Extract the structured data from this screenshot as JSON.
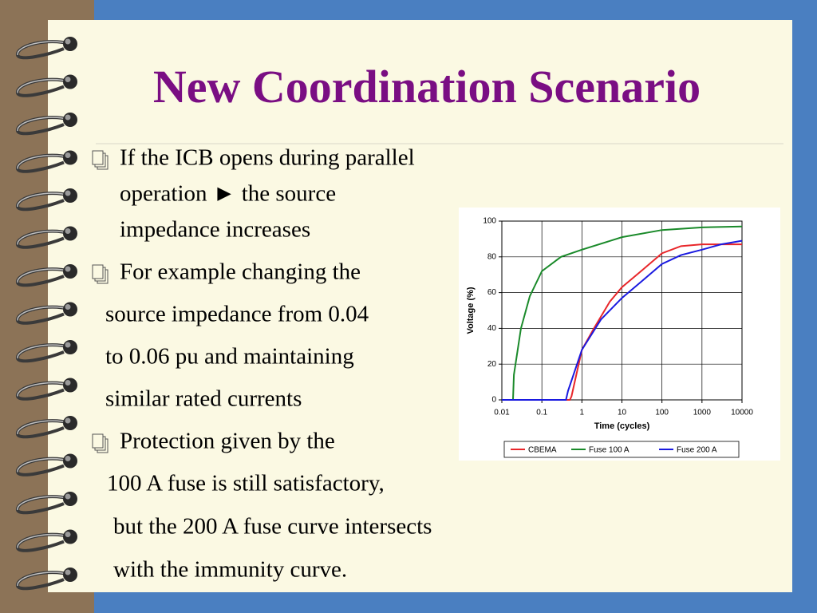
{
  "slide": {
    "title": "New Coordination Scenario",
    "bullets": [
      [
        "If the ICB opens during parallel",
        "operation ►  the source",
        "impedance increases"
      ],
      [
        "For example changing the",
        "source impedance from 0.04",
        "to 0.06 pu and maintaining",
        "similar rated currents"
      ],
      [
        "Protection given by the",
        "100 A fuse is still satisfactory,",
        "but  the 200 A fuse curve intersects",
        "with the immunity curve."
      ]
    ]
  },
  "chart_data": {
    "type": "line",
    "x_label": "Time (cycles)",
    "y_label": "Voltage (%)",
    "xscale": "log",
    "xlim": [
      0.01,
      10000
    ],
    "xticks": [
      0.01,
      0.1,
      1,
      10,
      100,
      1000,
      10000
    ],
    "ylim": [
      0,
      100
    ],
    "yticks": [
      0,
      20,
      40,
      60,
      80,
      100
    ],
    "grid": true,
    "legend": "bottom",
    "series": [
      {
        "name": "CBEMA",
        "color": "#e8262a",
        "x": [
          0.01,
          0.5,
          0.55,
          1,
          2,
          5,
          10,
          30,
          100,
          300,
          1000,
          10000
        ],
        "values": [
          0,
          0,
          2,
          28,
          40,
          55,
          63,
          72,
          82,
          86,
          87,
          87
        ]
      },
      {
        "name": "Fuse 100 A",
        "color": "#1a8a2a",
        "x": [
          0.01,
          0.019,
          0.02,
          0.03,
          0.05,
          0.1,
          0.3,
          1,
          10,
          100,
          1000,
          10000
        ],
        "values": [
          0,
          0,
          14,
          40,
          58,
          72,
          80,
          84,
          91,
          95,
          96.5,
          97
        ]
      },
      {
        "name": "Fuse 200 A",
        "color": "#1a1ae0",
        "x": [
          0.01,
          0.4,
          0.45,
          1,
          3,
          10,
          30,
          100,
          300,
          1000,
          3000,
          10000
        ],
        "values": [
          0,
          0,
          5,
          28,
          45,
          57,
          66,
          76,
          81,
          84,
          87,
          89
        ]
      }
    ]
  }
}
